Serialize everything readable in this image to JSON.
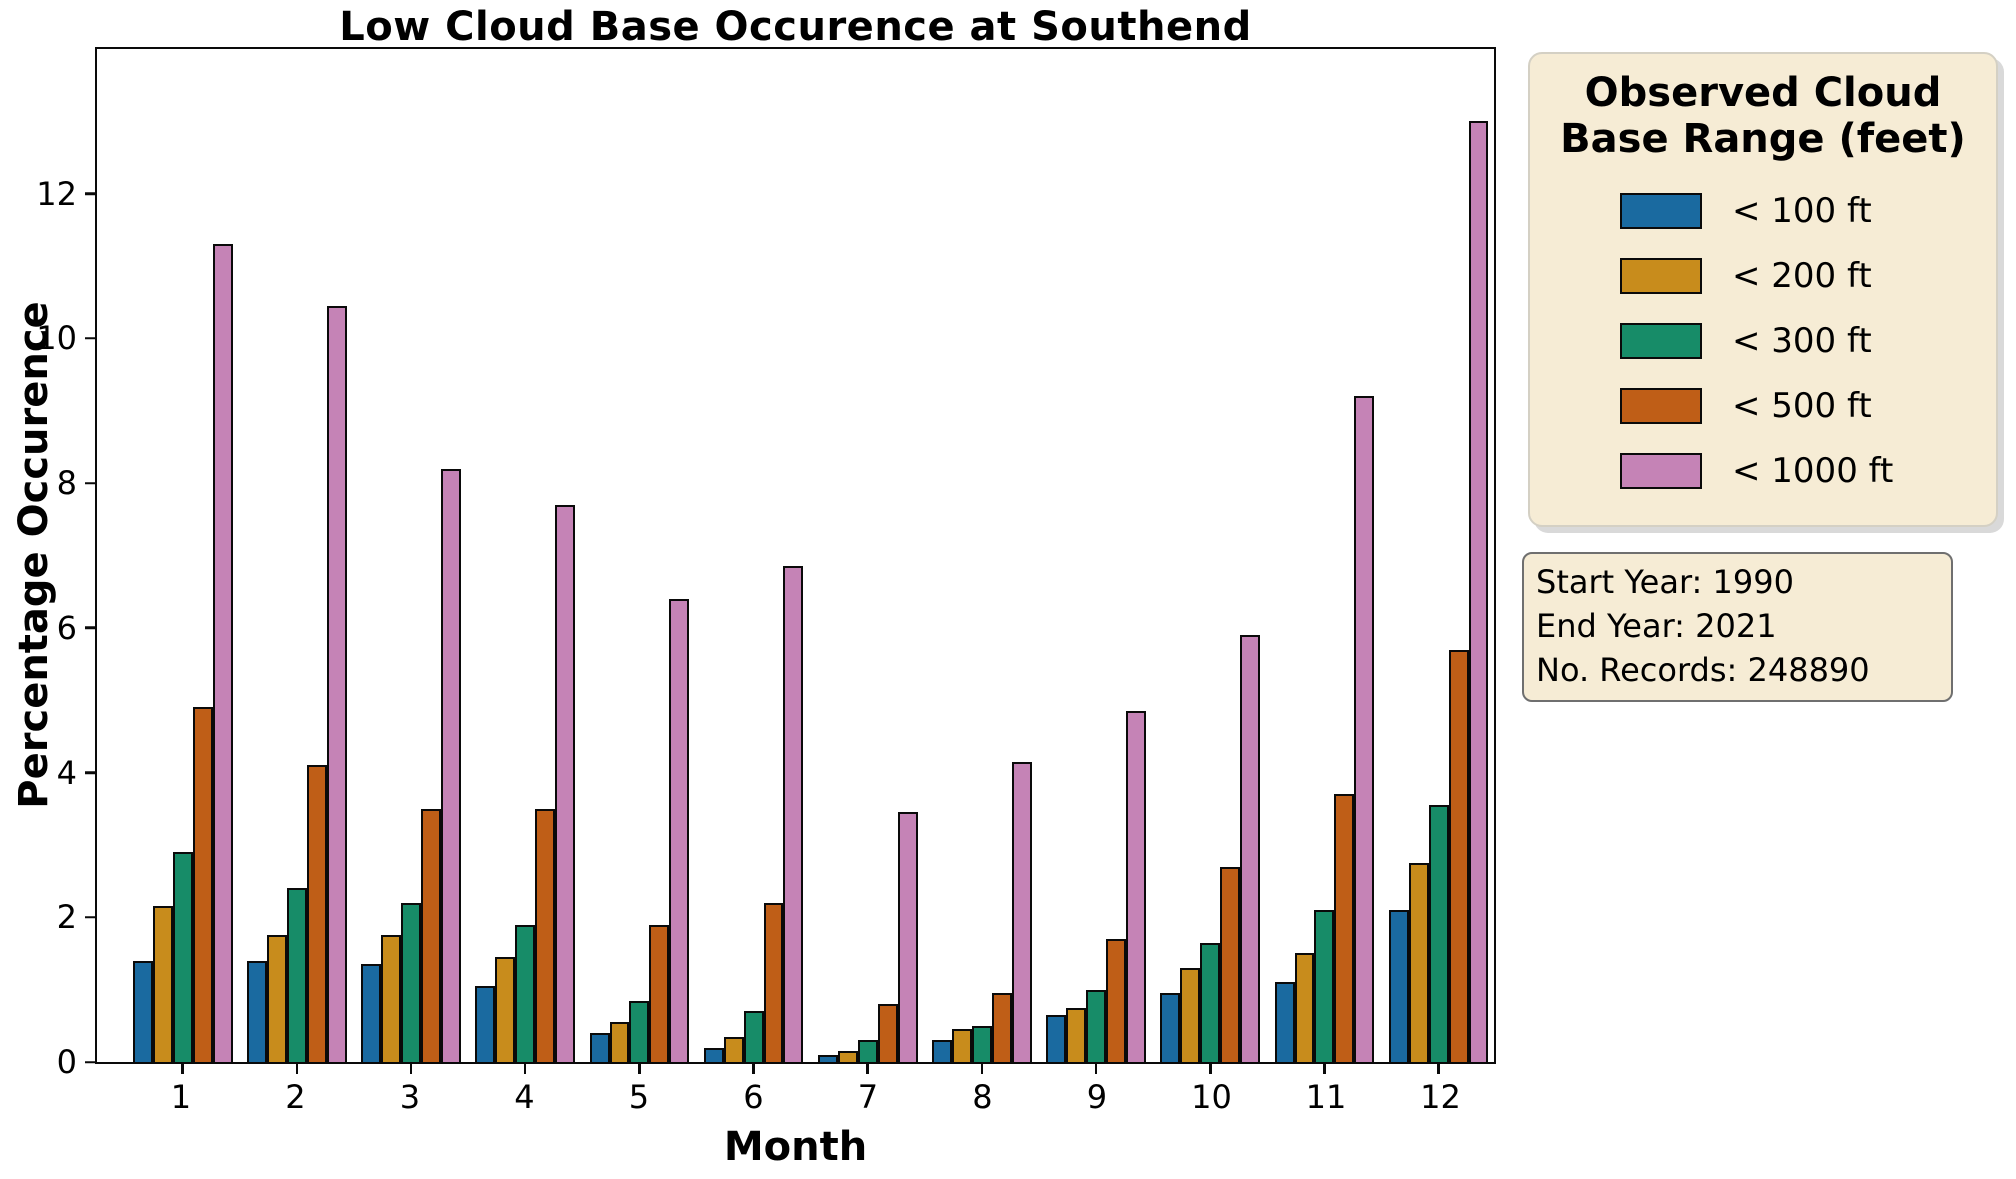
{
  "chart_data": {
    "type": "bar",
    "title": "Low Cloud Base Occurence at Southend",
    "xlabel": "Month",
    "ylabel": "Percentage Occurence",
    "categories": [
      "1",
      "2",
      "3",
      "4",
      "5",
      "6",
      "7",
      "8",
      "9",
      "10",
      "11",
      "12"
    ],
    "yticks": [
      "0",
      "2",
      "4",
      "6",
      "8",
      "10",
      "12"
    ],
    "ylim": [
      0,
      14
    ],
    "grid": false,
    "bar_edge_color": "#0a0a0a",
    "legend_position": "outside-right",
    "series": [
      {
        "name": "< 100 ft",
        "key": "lt-100ft",
        "color": "#1a6aa0",
        "values": [
          1.4,
          1.4,
          1.35,
          1.05,
          0.4,
          0.2,
          0.1,
          0.3,
          0.65,
          0.95,
          1.1,
          2.1
        ]
      },
      {
        "name": "< 200 ft",
        "key": "lt-200ft",
        "color": "#c88c1c",
        "values": [
          2.15,
          1.75,
          1.75,
          1.45,
          0.55,
          0.35,
          0.15,
          0.45,
          0.75,
          1.3,
          1.5,
          2.75
        ]
      },
      {
        "name": "< 300 ft",
        "key": "lt-300ft",
        "color": "#178c68",
        "values": [
          2.9,
          2.4,
          2.2,
          1.9,
          0.85,
          0.7,
          0.3,
          0.5,
          1.0,
          1.65,
          2.1,
          3.55
        ]
      },
      {
        "name": "< 500 ft",
        "key": "lt-500ft",
        "color": "#bf5e17",
        "values": [
          4.9,
          4.1,
          3.5,
          3.5,
          1.9,
          2.2,
          0.8,
          0.95,
          1.7,
          2.7,
          3.7,
          5.7
        ]
      },
      {
        "name": "< 1000 ft",
        "key": "lt-1000ft",
        "color": "#c583b6",
        "values": [
          11.3,
          10.45,
          8.2,
          7.7,
          6.4,
          6.85,
          3.45,
          4.15,
          4.85,
          5.9,
          9.2,
          13.0
        ]
      }
    ]
  },
  "legend": {
    "title": "Observed Cloud Base Range (feet)",
    "title_lines": [
      "Observed Cloud",
      "Base Range (feet)"
    ],
    "background_color": "#f6ecd5"
  },
  "info": {
    "lines": [
      "Start Year: 1990",
      "End Year: 2021",
      "No. Records: 248890"
    ],
    "background_color": "#f6ecd5"
  }
}
